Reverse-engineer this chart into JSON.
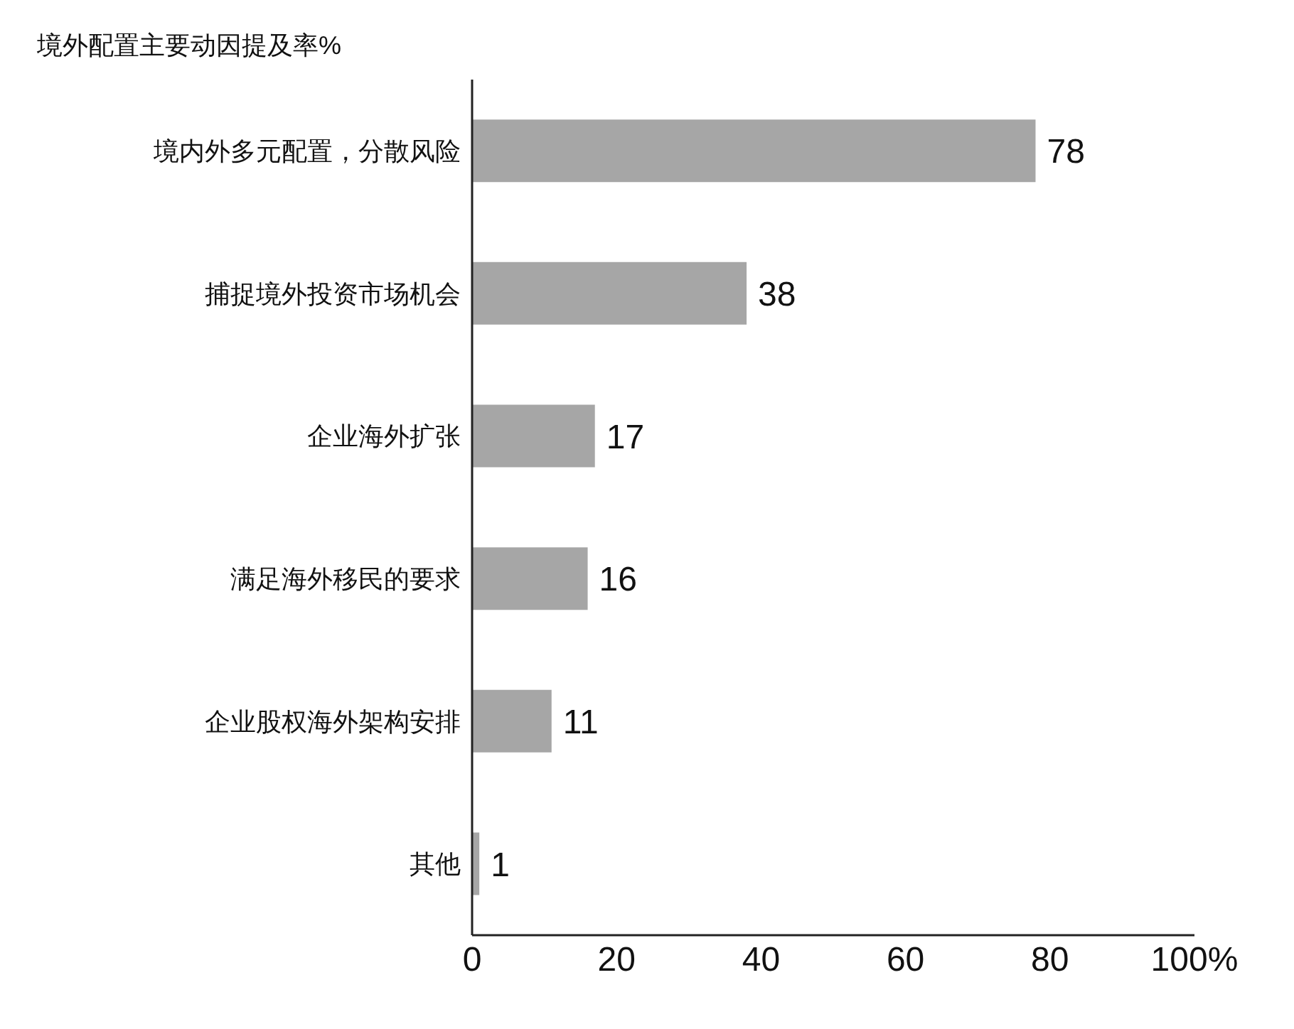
{
  "chart_data": {
    "type": "bar",
    "orientation": "horizontal",
    "title": "境外配置主要动因提及率%",
    "categories": [
      "境内外多元配置，分散风险",
      "捕捉境外投资市场机会",
      "企业海外扩张",
      "满足海外移民的要求",
      "企业股权海外架构安排",
      "其他"
    ],
    "values": [
      78,
      38,
      17,
      16,
      11,
      1
    ],
    "color": "#a6a6a6",
    "xlim": [
      0,
      100
    ],
    "xticks": [
      0,
      20,
      40,
      60,
      80,
      {
        "value": 100,
        "label": "100%"
      }
    ],
    "data_labels": true,
    "grid": false,
    "legend": false
  }
}
